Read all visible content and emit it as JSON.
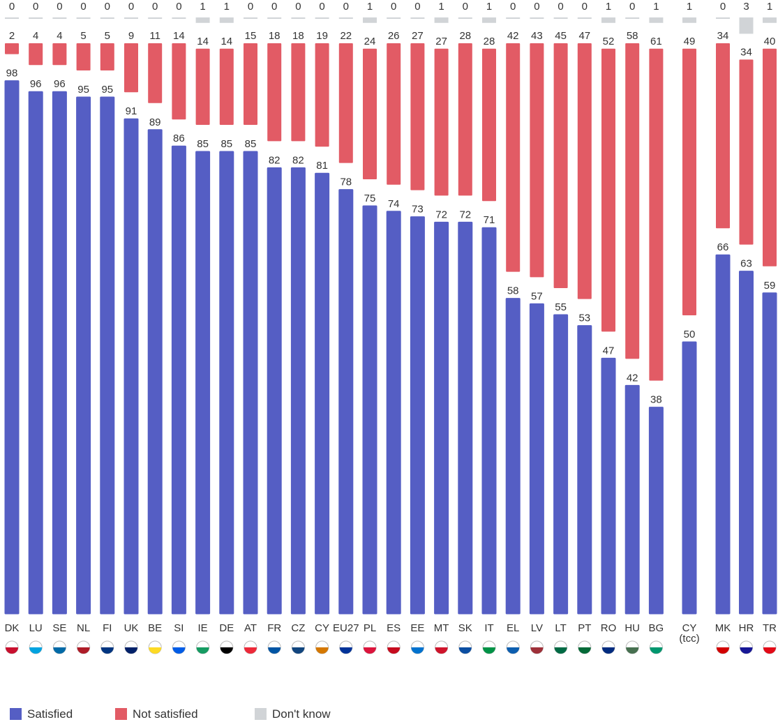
{
  "chart_data": {
    "type": "stacked_bar",
    "categories": [
      "DK",
      "LU",
      "SE",
      "NL",
      "FI",
      "UK",
      "BE",
      "SI",
      "IE",
      "DE",
      "AT",
      "FR",
      "CZ",
      "CY",
      "EU27",
      "PL",
      "ES",
      "EE",
      "MT",
      "SK",
      "IT",
      "EL",
      "LV",
      "LT",
      "PT",
      "RO",
      "HU",
      "BG",
      "CY (tcc)",
      "MK",
      "HR",
      "TR"
    ],
    "series": [
      {
        "name": "Satisfied",
        "color": "#555ec4",
        "values": [
          98,
          96,
          96,
          95,
          95,
          91,
          89,
          86,
          85,
          85,
          85,
          82,
          82,
          81,
          78,
          75,
          74,
          73,
          72,
          72,
          71,
          58,
          57,
          55,
          53,
          47,
          42,
          38,
          50,
          66,
          63,
          59
        ]
      },
      {
        "name": "Not satisfied",
        "color": "#e25b65",
        "values": [
          2,
          4,
          4,
          5,
          5,
          9,
          11,
          14,
          14,
          14,
          15,
          18,
          18,
          19,
          22,
          24,
          26,
          27,
          27,
          28,
          28,
          42,
          43,
          45,
          47,
          52,
          58,
          61,
          49,
          34,
          34,
          40
        ]
      },
      {
        "name": "Don't know",
        "color": "#d1d4d7",
        "values": [
          0,
          0,
          0,
          0,
          0,
          0,
          0,
          0,
          1,
          1,
          0,
          0,
          0,
          0,
          0,
          1,
          0,
          0,
          1,
          0,
          1,
          0,
          0,
          0,
          0,
          1,
          0,
          1,
          1,
          0,
          3,
          1
        ]
      }
    ]
  }
}
